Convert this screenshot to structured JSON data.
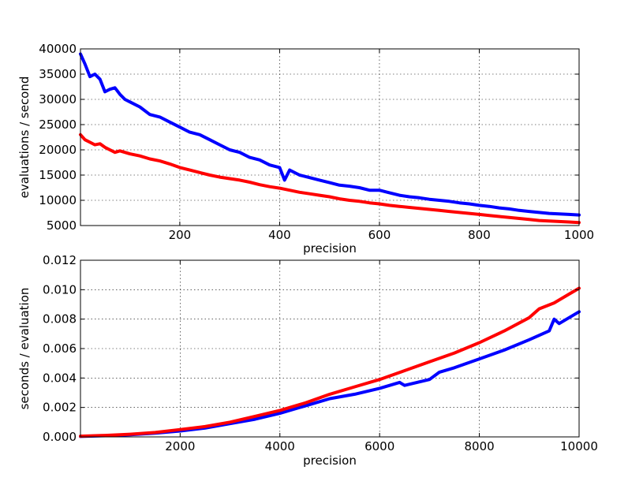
{
  "chart_data": [
    {
      "type": "line",
      "xlabel": "precision",
      "ylabel": "evaluations / second",
      "xlim": [
        1,
        1000
      ],
      "ylim": [
        5000,
        40000
      ],
      "xticks": [
        200,
        400,
        600,
        800,
        1000
      ],
      "xtick_labels": [
        "200",
        "400",
        "600",
        "800",
        "1000"
      ],
      "yticks": [
        5000,
        10000,
        15000,
        20000,
        25000,
        30000,
        35000,
        40000
      ],
      "ytick_labels": [
        "5000",
        "10000",
        "15000",
        "20000",
        "25000",
        "30000",
        "35000",
        "40000"
      ],
      "grid": true,
      "series": [
        {
          "color": "#0000ff",
          "x": [
            1,
            10,
            20,
            30,
            40,
            50,
            60,
            70,
            80,
            90,
            100,
            120,
            140,
            160,
            180,
            200,
            220,
            240,
            260,
            280,
            300,
            320,
            340,
            360,
            380,
            400,
            410,
            420,
            440,
            460,
            480,
            500,
            520,
            540,
            560,
            580,
            600,
            620,
            640,
            660,
            680,
            700,
            720,
            740,
            760,
            780,
            800,
            820,
            840,
            860,
            880,
            900,
            920,
            940,
            960,
            980,
            1000
          ],
          "y": [
            39000,
            37000,
            34500,
            35000,
            34000,
            31500,
            32000,
            32300,
            31000,
            30000,
            29500,
            28500,
            27000,
            26500,
            25500,
            24500,
            23500,
            23000,
            22000,
            21000,
            20000,
            19500,
            18500,
            18000,
            17000,
            16500,
            14000,
            16000,
            15000,
            14500,
            14000,
            13500,
            13000,
            12800,
            12500,
            12000,
            12000,
            11500,
            11000,
            10700,
            10500,
            10200,
            10000,
            9800,
            9500,
            9300,
            9000,
            8800,
            8500,
            8300,
            8000,
            7800,
            7600,
            7400,
            7300,
            7200,
            7100
          ]
        },
        {
          "color": "#ff0000",
          "x": [
            1,
            10,
            20,
            30,
            40,
            50,
            60,
            70,
            80,
            90,
            100,
            120,
            140,
            160,
            180,
            200,
            220,
            240,
            260,
            280,
            300,
            320,
            340,
            360,
            380,
            400,
            420,
            440,
            460,
            480,
            500,
            520,
            540,
            560,
            580,
            600,
            620,
            640,
            660,
            680,
            700,
            720,
            740,
            760,
            780,
            800,
            820,
            840,
            860,
            880,
            900,
            920,
            940,
            960,
            980,
            1000
          ],
          "y": [
            23000,
            22000,
            21500,
            21000,
            21200,
            20500,
            20000,
            19500,
            19800,
            19500,
            19200,
            18800,
            18200,
            17800,
            17200,
            16500,
            16000,
            15500,
            15000,
            14600,
            14300,
            14000,
            13600,
            13100,
            12700,
            12400,
            12000,
            11600,
            11300,
            11000,
            10700,
            10300,
            10000,
            9800,
            9500,
            9300,
            9000,
            8800,
            8600,
            8400,
            8200,
            8000,
            7800,
            7600,
            7400,
            7200,
            7000,
            6800,
            6600,
            6400,
            6200,
            6000,
            5900,
            5800,
            5700,
            5600
          ]
        }
      ]
    },
    {
      "type": "line",
      "xlabel": "precision",
      "ylabel": "seconds / evaluation",
      "xlim": [
        1,
        10000
      ],
      "ylim": [
        0,
        0.012
      ],
      "xticks": [
        2000,
        4000,
        6000,
        8000,
        10000
      ],
      "xtick_labels": [
        "2000",
        "4000",
        "6000",
        "8000",
        "10000"
      ],
      "yticks": [
        0,
        0.002,
        0.004,
        0.006,
        0.008,
        0.01,
        0.012
      ],
      "ytick_labels": [
        "0.000",
        "0.002",
        "0.004",
        "0.006",
        "0.008",
        "0.010",
        "0.012"
      ],
      "grid": true,
      "series": [
        {
          "color": "#0000ff",
          "x": [
            1,
            500,
            1000,
            1500,
            2000,
            2500,
            3000,
            3500,
            4000,
            4500,
            5000,
            5500,
            6000,
            6400,
            6500,
            7000,
            7200,
            7500,
            8000,
            8500,
            9000,
            9400,
            9500,
            9600,
            10000
          ],
          "y": [
            3e-05,
            8e-05,
            0.00015,
            0.00025,
            0.0004,
            0.0006,
            0.0009,
            0.0012,
            0.0016,
            0.0021,
            0.0026,
            0.0029,
            0.0033,
            0.0037,
            0.0035,
            0.0039,
            0.0044,
            0.0047,
            0.0053,
            0.0059,
            0.0066,
            0.0072,
            0.008,
            0.0077,
            0.0085
          ]
        },
        {
          "color": "#ff0000",
          "x": [
            1,
            500,
            1000,
            1500,
            2000,
            2500,
            3000,
            3500,
            4000,
            4500,
            5000,
            5500,
            6000,
            6500,
            7000,
            7500,
            8000,
            8500,
            9000,
            9200,
            9500,
            9800,
            10000
          ],
          "y": [
            5e-05,
            0.0001,
            0.00018,
            0.0003,
            0.0005,
            0.0007,
            0.001,
            0.0014,
            0.0018,
            0.0023,
            0.0029,
            0.0034,
            0.0039,
            0.0045,
            0.0051,
            0.0057,
            0.0064,
            0.0072,
            0.0081,
            0.0087,
            0.0091,
            0.0097,
            0.0101
          ]
        }
      ]
    }
  ]
}
